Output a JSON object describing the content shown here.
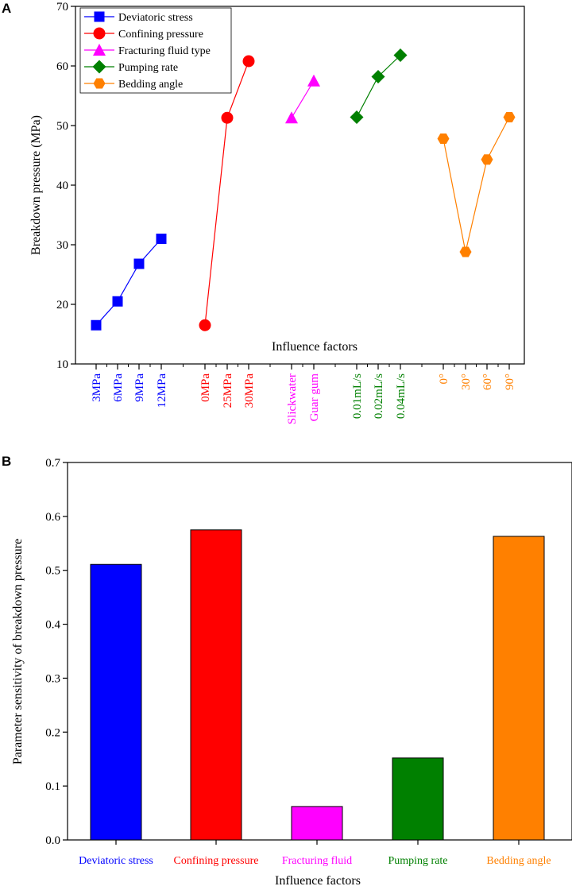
{
  "figure": {
    "panel_a_label": "A",
    "panel_b_label": "B"
  },
  "colors": {
    "deviatoric": "#0000ff",
    "confining": "#ff0000",
    "fluid": "#ff00ff",
    "pumping": "#008000",
    "bedding": "#ff8000",
    "axis": "#000000"
  },
  "chart_data": [
    {
      "type": "line",
      "title": "",
      "xlabel": "Influence factors",
      "ylabel": "Breakdown pressure (MPa)",
      "ylim": [
        10,
        70
      ],
      "yticks": [
        10,
        20,
        30,
        40,
        50,
        60,
        70
      ],
      "legend": "top-left",
      "series": [
        {
          "name": "Deviatoric stress",
          "marker": "square",
          "color": "#0000ff",
          "categories": [
            "3MPa",
            "6MPa",
            "9MPa",
            "12MPa"
          ],
          "values": [
            16.5,
            20.5,
            26.8,
            31.0
          ]
        },
        {
          "name": "Confining pressure",
          "marker": "circle",
          "color": "#ff0000",
          "categories": [
            "0MPa",
            "25MPa",
            "30MPa"
          ],
          "values": [
            16.5,
            51.3,
            60.8
          ]
        },
        {
          "name": "Fracturing fluid type",
          "marker": "triangle",
          "color": "#ff00ff",
          "categories": [
            "Slickwater",
            "Guar gum"
          ],
          "values": [
            51.3,
            57.5
          ]
        },
        {
          "name": "Pumping rate",
          "marker": "diamond",
          "color": "#008000",
          "categories": [
            "0.01mL/s",
            "0.02mL/s",
            "0.04mL/s"
          ],
          "values": [
            51.4,
            58.2,
            61.8
          ]
        },
        {
          "name": "Bedding angle",
          "marker": "hexagon",
          "color": "#ff8000",
          "categories": [
            "0°",
            "30°",
            "60°",
            "90°"
          ],
          "values": [
            47.8,
            28.8,
            44.3,
            51.4
          ]
        }
      ]
    },
    {
      "type": "bar",
      "title": "",
      "xlabel": "Influence factors",
      "ylabel": "Parameter sensitivity of breakdown pressure",
      "ylim": [
        0.0,
        0.7
      ],
      "yticks": [
        "0.0",
        "0.1",
        "0.2",
        "0.3",
        "0.4",
        "0.5",
        "0.6",
        "0.7"
      ],
      "categories": [
        "Deviatoric stress",
        "Confining pressure",
        "Fracturing fluid",
        "Pumping rate",
        "Bedding angle"
      ],
      "values": [
        0.511,
        0.575,
        0.062,
        0.152,
        0.563
      ],
      "colors": [
        "#0000ff",
        "#ff0000",
        "#ff00ff",
        "#008000",
        "#ff8000"
      ]
    }
  ]
}
